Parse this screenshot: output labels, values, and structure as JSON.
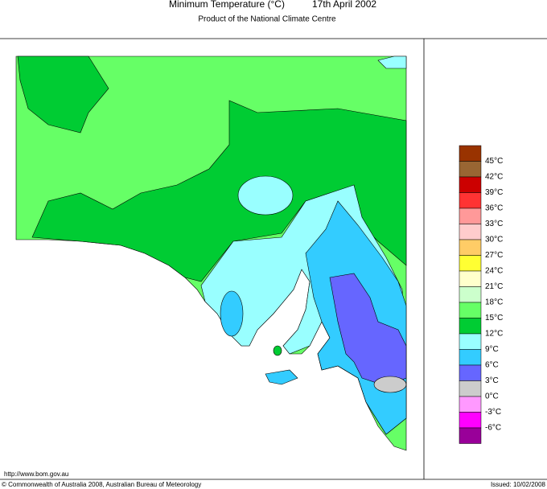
{
  "header": {
    "title": "Minimum Temperature (°C)",
    "date": "17th April 2002",
    "subtitle": "Product of the National Climate Centre"
  },
  "legend": {
    "labels": [
      "45°C",
      "42°C",
      "39°C",
      "36°C",
      "33°C",
      "30°C",
      "27°C",
      "24°C",
      "21°C",
      "18°C",
      "15°C",
      "12°C",
      "9°C",
      "6°C",
      "3°C",
      "0°C",
      "-3°C",
      "-6°C"
    ],
    "colors": [
      "#993300",
      "#996633",
      "#cc0000",
      "#ff3333",
      "#ff9999",
      "#ffcccc",
      "#ffcc66",
      "#ffff33",
      "#ffffcc",
      "#ccffcc",
      "#66ff66",
      "#00cc33",
      "#99ffff",
      "#33ccff",
      "#6666ff",
      "#cccccc",
      "#ff99ff",
      "#ff00ff",
      "#990099"
    ]
  },
  "footer": {
    "url": "http://www.bom.gov.au",
    "copyright": "© Commonwealth of Australia 2008, Australian Bureau of Meteorology",
    "issued": "Issued: 10/02/2008"
  }
}
